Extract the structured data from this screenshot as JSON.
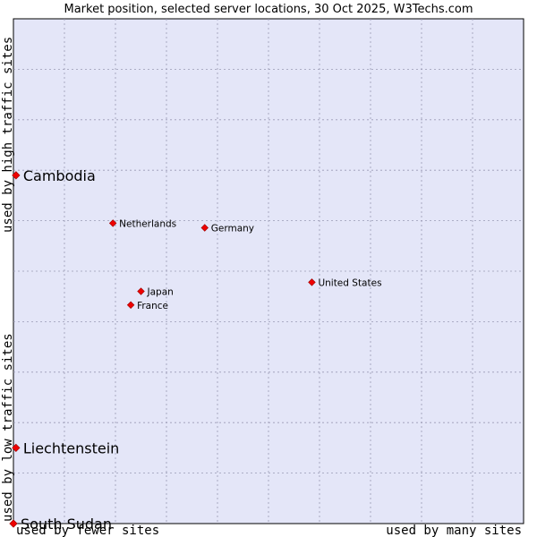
{
  "chart_data": {
    "type": "scatter",
    "title": "Market position, selected server locations, 30 Oct 2025, W3Techs.com",
    "xlabel_left": "used by fewer sites",
    "xlabel_right": "used by many sites",
    "ylabel_low": "used by low traffic sites",
    "ylabel_high": "used by high traffic sites",
    "xlim": [
      0,
      10
    ],
    "ylim": [
      0,
      10
    ],
    "grid": true,
    "colors": {
      "plot_bg": "#e4e6f8",
      "grid": "#9a9ab4",
      "marker": "#ee0000",
      "marker_edge": "#990000"
    },
    "points": [
      {
        "name": "Cambodia",
        "x": 0.05,
        "y": 6.9,
        "size": "large"
      },
      {
        "name": "Netherlands",
        "x": 1.95,
        "y": 5.95,
        "size": "small"
      },
      {
        "name": "Germany",
        "x": 3.75,
        "y": 5.86,
        "size": "small"
      },
      {
        "name": "United States",
        "x": 5.85,
        "y": 4.78,
        "size": "small"
      },
      {
        "name": "Japan",
        "x": 2.5,
        "y": 4.6,
        "size": "small"
      },
      {
        "name": "France",
        "x": 2.3,
        "y": 4.33,
        "size": "small"
      },
      {
        "name": "Liechtenstein",
        "x": 0.05,
        "y": 1.5,
        "size": "large"
      },
      {
        "name": "South Sudan",
        "x": 0.0,
        "y": 0.0,
        "size": "large"
      }
    ]
  }
}
